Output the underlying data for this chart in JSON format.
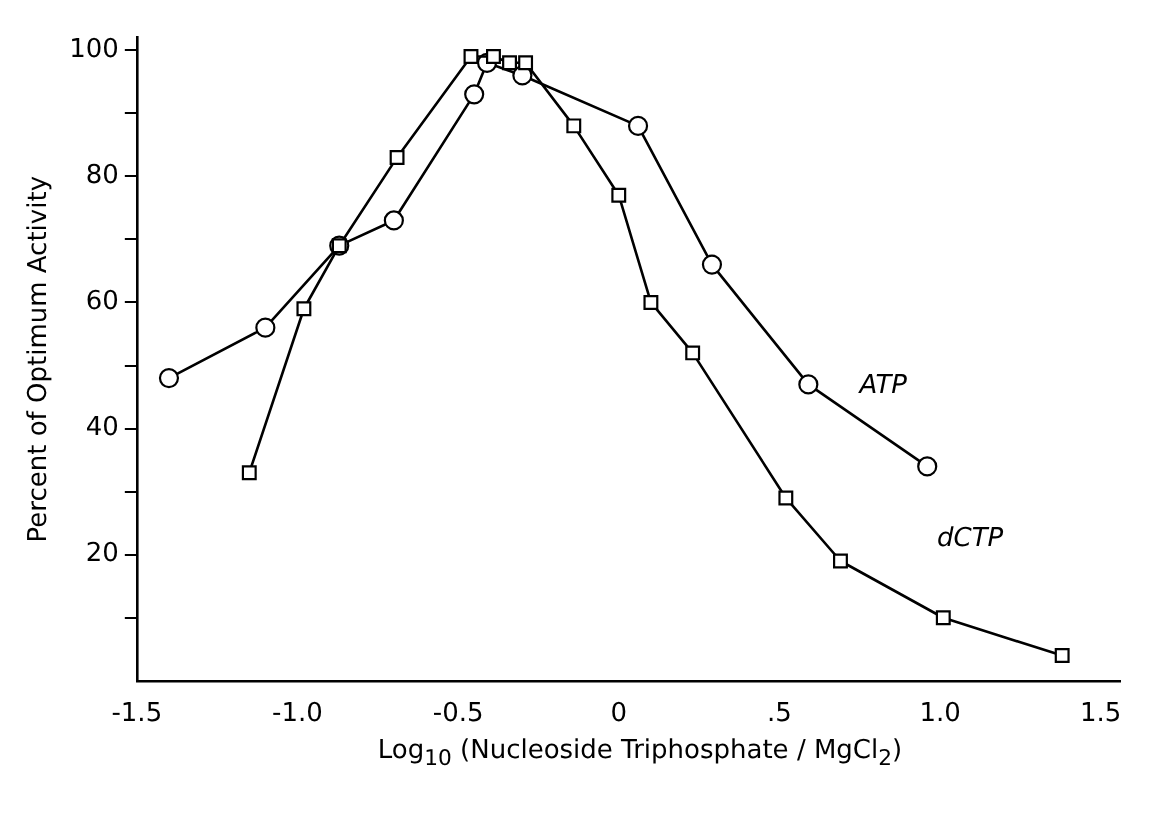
{
  "chart_data": {
    "type": "line",
    "xlabel": "Log$_{10}$ (Nucleoside Triphosphate / MgCl$_{2}$)",
    "ylabel": "Percent of Optimum Activity",
    "xlim": [
      -1.5,
      1.56
    ],
    "xticks": [
      {
        "value": -1.5,
        "label": "-1.5"
      },
      {
        "value": -1.0,
        "label": "-1.0"
      },
      {
        "value": -0.5,
        "label": "-0.5"
      },
      0,
      {
        "value": 0.5,
        "label": ".5"
      },
      {
        "value": 1.0,
        "label": "1.0"
      },
      {
        "value": 1.5,
        "label": "1.5"
      }
    ],
    "ylim": [
      0,
      102
    ],
    "yticks": [
      {
        "value": 10,
        "label": null
      },
      20,
      {
        "value": 30,
        "label": null
      },
      40,
      {
        "value": 50,
        "label": null
      },
      60,
      {
        "value": 70,
        "label": null
      },
      80,
      {
        "value": 90,
        "label": null
      },
      100
    ],
    "grid": false,
    "legend": false,
    "line_style": "solid",
    "series": [
      {
        "name": "ATP",
        "color": "#000000",
        "marker": "circle",
        "x": [
          -1.4,
          -1.1,
          -0.87,
          -0.7,
          -0.45,
          -0.41,
          -0.3,
          0.06,
          0.29,
          0.59,
          0.96
        ],
        "values": [
          48,
          56,
          69,
          73,
          93,
          98,
          96,
          88,
          66,
          47,
          34
        ]
      },
      {
        "name": "dCTP",
        "color": "#000000",
        "marker": "square",
        "x": [
          -1.15,
          -0.98,
          -0.87,
          -0.69,
          -0.46,
          -0.39,
          -0.34,
          -0.29,
          -0.14,
          0.0,
          0.1,
          0.23,
          0.52,
          0.69,
          1.01,
          1.38
        ],
        "values": [
          33,
          59,
          69,
          83,
          99,
          99,
          98,
          98,
          88,
          77,
          60,
          52,
          29,
          19,
          10,
          4
        ]
      }
    ]
  }
}
